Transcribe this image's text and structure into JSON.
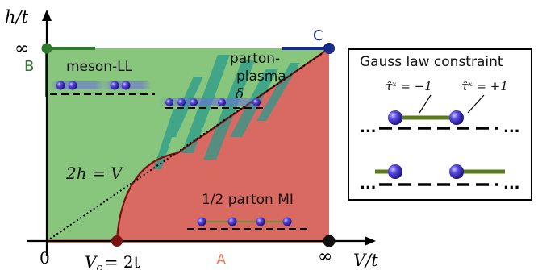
{
  "axes": {
    "y_label": "h/t",
    "x_label": "V/t",
    "origin": "0",
    "y_infinity": "∞",
    "x_infinity": "∞",
    "critical": "V",
    "critical_sub": "c",
    "critical_value": "= 2t"
  },
  "points": {
    "A": "A",
    "B": "B",
    "C": "C"
  },
  "phases": {
    "meson": "meson-LL",
    "plasma_line1": "parton-",
    "plasma_line2": "plasma",
    "delta": "δ",
    "mott": "1/2 parton MI"
  },
  "line_label": "2h = V",
  "colors": {
    "meson_region": "#88c67e",
    "mott_region": "#d96a62",
    "boundary": "#7a1010",
    "teal_stripes": "#2a9a8a",
    "link_green": "#5a7a1a",
    "particle": "#4433cc",
    "point_B": "#2d7a2d",
    "point_C": "#1a2a8a",
    "point_A": "#f08060"
  },
  "inset": {
    "title": "Gauss law constraint",
    "tau_left": "τ̂ˣ = −1",
    "tau_right": "τ̂ˣ = +1",
    "dots": "..."
  }
}
